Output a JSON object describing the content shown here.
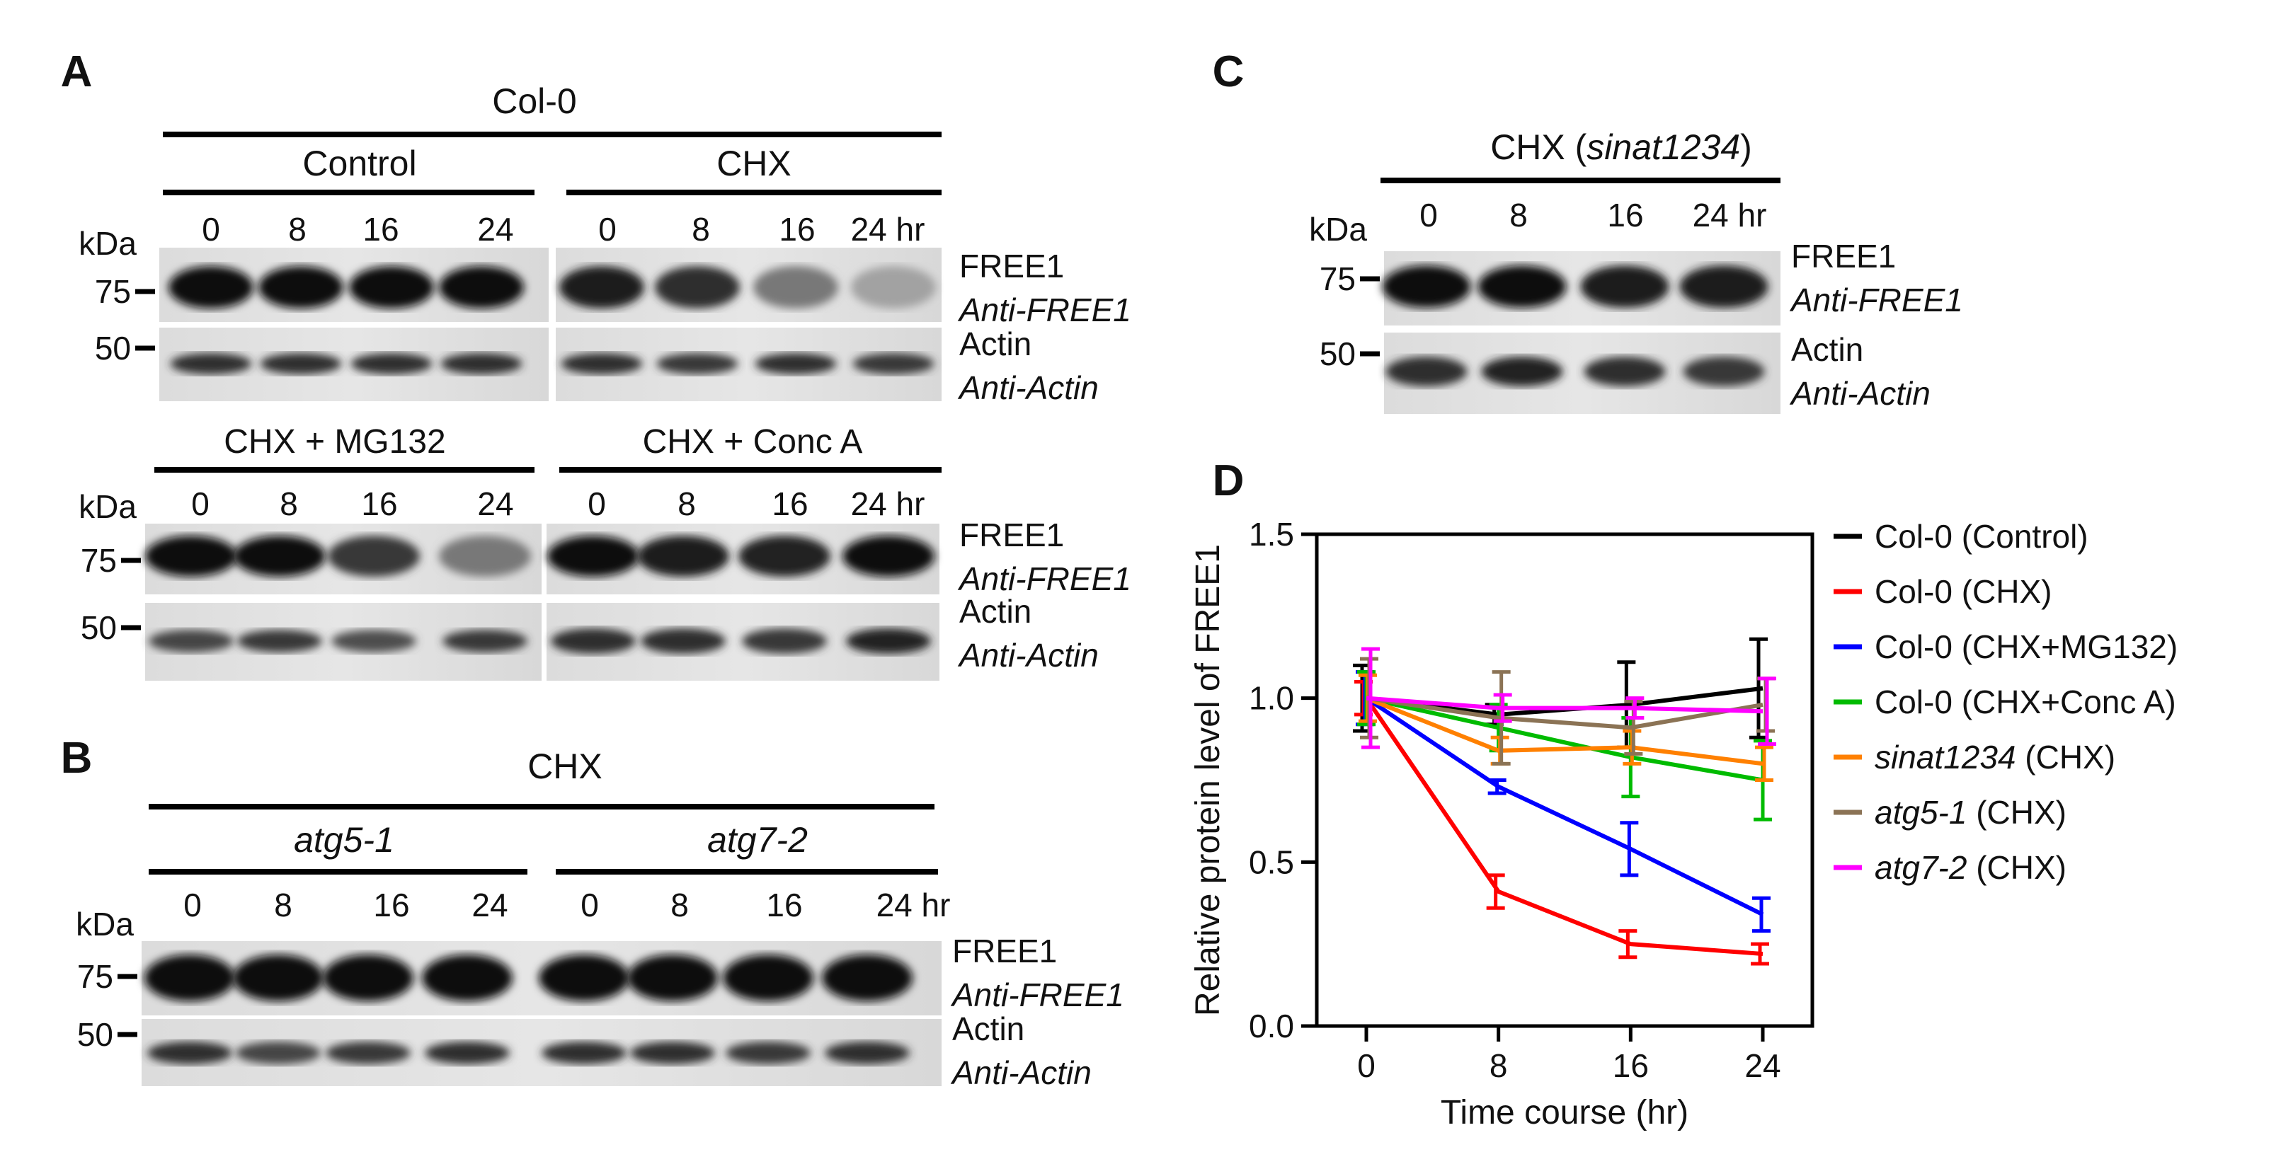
{
  "panels": {
    "A": {
      "letter": "A",
      "group_title": "Col-0",
      "top": {
        "left_title": "Control",
        "right_title": "CHX",
        "left_times": [
          "0",
          "8",
          "16",
          "24"
        ],
        "right_times": [
          "0",
          "8",
          "16",
          "24 hr"
        ],
        "free1_intensity_left": [
          1.0,
          1.0,
          1.0,
          1.0
        ],
        "free1_intensity_right": [
          0.95,
          0.85,
          0.5,
          0.3
        ],
        "actin_intensity_left": [
          0.85,
          0.85,
          0.85,
          0.85
        ],
        "actin_intensity_right": [
          0.85,
          0.8,
          0.85,
          0.8
        ]
      },
      "bottom": {
        "left_title": "CHX + MG132",
        "right_title": "CHX + Conc A",
        "left_times": [
          "0",
          "8",
          "16",
          "24"
        ],
        "right_times": [
          "0",
          "8",
          "16",
          "24 hr"
        ],
        "free1_intensity_left": [
          1.0,
          1.0,
          0.8,
          0.5
        ],
        "free1_intensity_right": [
          1.0,
          0.95,
          0.9,
          1.0
        ],
        "actin_intensity_left": [
          0.75,
          0.8,
          0.7,
          0.8
        ],
        "actin_intensity_right": [
          0.85,
          0.85,
          0.8,
          0.9
        ]
      }
    },
    "B": {
      "letter": "B",
      "group_title": "CHX",
      "left_title": "atg5-1",
      "right_title": "atg7-2",
      "left_times": [
        "0",
        "8",
        "16",
        "24"
      ],
      "right_times": [
        "0",
        "8",
        "16",
        "24 hr"
      ],
      "free1_intensity": [
        1.0,
        1.0,
        1.0,
        1.0,
        1.0,
        1.0,
        1.0,
        1.0
      ],
      "actin_intensity": [
        0.85,
        0.75,
        0.8,
        0.85,
        0.85,
        0.85,
        0.8,
        0.85
      ]
    },
    "C": {
      "letter": "C",
      "title_prefix": "CHX (",
      "title_italic": "sinat1234",
      "title_suffix": ")",
      "times": [
        "0",
        "8",
        "16",
        "24 hr"
      ],
      "free1_intensity": [
        1.0,
        1.0,
        0.95,
        0.95
      ],
      "actin_intensity": [
        0.85,
        0.9,
        0.85,
        0.8
      ]
    },
    "D": {
      "letter": "D"
    }
  },
  "blot_labels": {
    "kda": "kDa",
    "marker_75": "75",
    "marker_50": "50",
    "free1": "FREE1",
    "anti_free1": "Anti-FREE1",
    "actin": "Actin",
    "anti_actin": "Anti-Actin"
  },
  "chart_data": {
    "type": "line",
    "xlabel": "Time course (hr)",
    "ylabel": "Relative protein level of FREE1",
    "x": [
      0,
      8,
      16,
      24
    ],
    "xlim": [
      -3,
      27
    ],
    "ylim": [
      0,
      1.5
    ],
    "yticks": [
      "0.0",
      "0.5",
      "1.0",
      "1.5"
    ],
    "xticks": [
      "0",
      "8",
      "16",
      "24"
    ],
    "legend_position": "right",
    "series": [
      {
        "name": "Col-0 (Control)",
        "label_italic": "",
        "label_rest": "Col-0 (Control)",
        "color": "#000000",
        "values": [
          1.0,
          0.95,
          0.98,
          1.03
        ],
        "errors": [
          0.1,
          0.03,
          0.13,
          0.15
        ]
      },
      {
        "name": "Col-0 (CHX)",
        "label_italic": "",
        "label_rest": "Col-0 (CHX)",
        "color": "#ff0000",
        "values": [
          1.0,
          0.41,
          0.25,
          0.22
        ],
        "errors": [
          0.05,
          0.05,
          0.04,
          0.03
        ]
      },
      {
        "name": "Col-0 (CHX+MG132)",
        "label_italic": "",
        "label_rest": "Col-0 (CHX+MG132)",
        "color": "#0000ff",
        "values": [
          1.0,
          0.73,
          0.54,
          0.34
        ],
        "errors": [
          0.08,
          0.02,
          0.08,
          0.05
        ]
      },
      {
        "name": "Col-0 (CHX+Conc A)",
        "label_italic": "",
        "label_rest": "Col-0 (CHX+Conc A)",
        "color": "#00bb00",
        "values": [
          1.0,
          0.91,
          0.82,
          0.75
        ],
        "errors": [
          0.08,
          0.07,
          0.12,
          0.12
        ]
      },
      {
        "name": "sinat1234 (CHX)",
        "label_italic": "sinat1234",
        "label_rest": " (CHX)",
        "color": "#ff8000",
        "values": [
          1.0,
          0.84,
          0.85,
          0.8
        ],
        "errors": [
          0.07,
          0.04,
          0.05,
          0.05
        ]
      },
      {
        "name": "atg5-1 (CHX)",
        "label_italic": "atg5-1",
        "label_rest": " (CHX)",
        "color": "#8b7355",
        "values": [
          1.0,
          0.94,
          0.91,
          0.98
        ],
        "errors": [
          0.12,
          0.14,
          0.08,
          0.08
        ]
      },
      {
        "name": "atg7-2 (CHX)",
        "label_italic": "atg7-2",
        "label_rest": " (CHX)",
        "color": "#ff00ff",
        "values": [
          1.0,
          0.97,
          0.97,
          0.96
        ],
        "errors": [
          0.15,
          0.04,
          0.03,
          0.1
        ]
      }
    ]
  }
}
